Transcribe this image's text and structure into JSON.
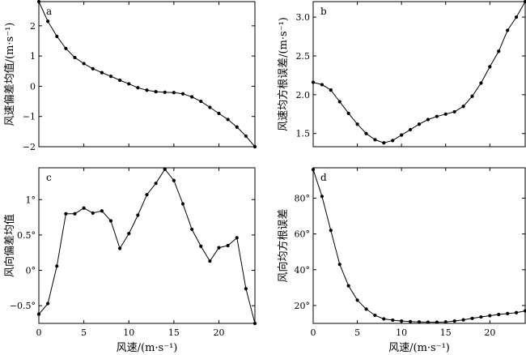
{
  "chart_data": [
    {
      "type": "line",
      "panel_label": "a",
      "xlabel": "",
      "ylabel": "风速偏差均值/(m·s⁻¹)",
      "xlim": [
        0,
        24
      ],
      "ylim": [
        -2,
        2.8
      ],
      "xticks": [],
      "yticks": [
        {
          "v": -2,
          "label": "−2"
        },
        {
          "v": -1,
          "label": "−1"
        },
        {
          "v": 0,
          "label": "0"
        },
        {
          "v": 1,
          "label": "1"
        },
        {
          "v": 2,
          "label": "2"
        }
      ],
      "x": [
        0,
        1,
        2,
        3,
        4,
        5,
        6,
        7,
        8,
        9,
        10,
        11,
        12,
        13,
        14,
        15,
        16,
        17,
        18,
        19,
        20,
        21,
        22,
        23,
        24
      ],
      "y": [
        2.8,
        2.15,
        1.65,
        1.25,
        0.95,
        0.75,
        0.58,
        0.45,
        0.33,
        0.2,
        0.08,
        -0.05,
        -0.13,
        -0.18,
        -0.2,
        -0.21,
        -0.25,
        -0.35,
        -0.5,
        -0.7,
        -0.9,
        -1.1,
        -1.35,
        -1.65,
        -2.0
      ]
    },
    {
      "type": "line",
      "panel_label": "b",
      "xlabel": "",
      "ylabel": "风速均方根误差/(m·s⁻¹)",
      "xlim": [
        0,
        24
      ],
      "ylim": [
        1.33,
        3.2
      ],
      "xticks": [],
      "yticks": [
        {
          "v": 1.5,
          "label": "1.5"
        },
        {
          "v": 2.0,
          "label": "2.0"
        },
        {
          "v": 2.5,
          "label": "2.5"
        },
        {
          "v": 3.0,
          "label": "3.0"
        }
      ],
      "x": [
        0,
        1,
        2,
        3,
        4,
        5,
        6,
        7,
        8,
        9,
        10,
        11,
        12,
        13,
        14,
        15,
        16,
        17,
        18,
        19,
        20,
        21,
        22,
        23,
        24
      ],
      "y": [
        2.16,
        2.13,
        2.06,
        1.91,
        1.76,
        1.62,
        1.5,
        1.42,
        1.38,
        1.41,
        1.48,
        1.55,
        1.62,
        1.68,
        1.72,
        1.75,
        1.78,
        1.85,
        1.98,
        2.15,
        2.36,
        2.56,
        2.83,
        3.0,
        3.2
      ]
    },
    {
      "type": "line",
      "panel_label": "c",
      "xlabel": "风速/(m·s⁻¹)",
      "ylabel": "风向偏差均值",
      "xlim": [
        0,
        24
      ],
      "ylim": [
        -0.75,
        1.45
      ],
      "xticks": [
        {
          "v": 0,
          "label": "0"
        },
        {
          "v": 5,
          "label": "5"
        },
        {
          "v": 10,
          "label": "10"
        },
        {
          "v": 15,
          "label": "15"
        },
        {
          "v": 20,
          "label": "20"
        }
      ],
      "yticks": [
        {
          "v": -0.5,
          "label": "−0.5°"
        },
        {
          "v": 0,
          "label": "0°"
        },
        {
          "v": 0.5,
          "label": "0.5°"
        },
        {
          "v": 1,
          "label": "1°"
        }
      ],
      "x": [
        0,
        1,
        2,
        3,
        4,
        5,
        6,
        7,
        8,
        9,
        10,
        11,
        12,
        13,
        14,
        15,
        16,
        17,
        18,
        19,
        20,
        21,
        22,
        23,
        24
      ],
      "y": [
        -0.62,
        -0.47,
        0.06,
        0.8,
        0.8,
        0.88,
        0.81,
        0.84,
        0.7,
        0.31,
        0.52,
        0.78,
        1.07,
        1.23,
        1.43,
        1.27,
        0.94,
        0.58,
        0.34,
        0.13,
        0.32,
        0.35,
        0.46,
        -0.26,
        -0.75
      ]
    },
    {
      "type": "line",
      "panel_label": "d",
      "xlabel": "风速/(m·s⁻¹)",
      "ylabel": "风向均方根误差",
      "xlim": [
        0,
        24
      ],
      "ylim": [
        10,
        97
      ],
      "xticks": [
        {
          "v": 0,
          "label": "0"
        },
        {
          "v": 5,
          "label": "5"
        },
        {
          "v": 10,
          "label": "10"
        },
        {
          "v": 15,
          "label": "15"
        },
        {
          "v": 20,
          "label": "20"
        }
      ],
      "yticks": [
        {
          "v": 20,
          "label": "20°"
        },
        {
          "v": 40,
          "label": "40°"
        },
        {
          "v": 60,
          "label": "60°"
        },
        {
          "v": 80,
          "label": "80°"
        }
      ],
      "x": [
        0,
        1,
        2,
        3,
        4,
        5,
        6,
        7,
        8,
        9,
        10,
        11,
        12,
        13,
        14,
        15,
        16,
        17,
        18,
        19,
        20,
        21,
        22,
        23,
        24
      ],
      "y": [
        96,
        81,
        62,
        43,
        31,
        23,
        18,
        14.5,
        12.5,
        11.8,
        11.3,
        11.0,
        10.8,
        10.7,
        10.7,
        10.8,
        11.3,
        12.0,
        12.8,
        13.6,
        14.3,
        15.0,
        15.5,
        16.0,
        17.0
      ]
    }
  ]
}
